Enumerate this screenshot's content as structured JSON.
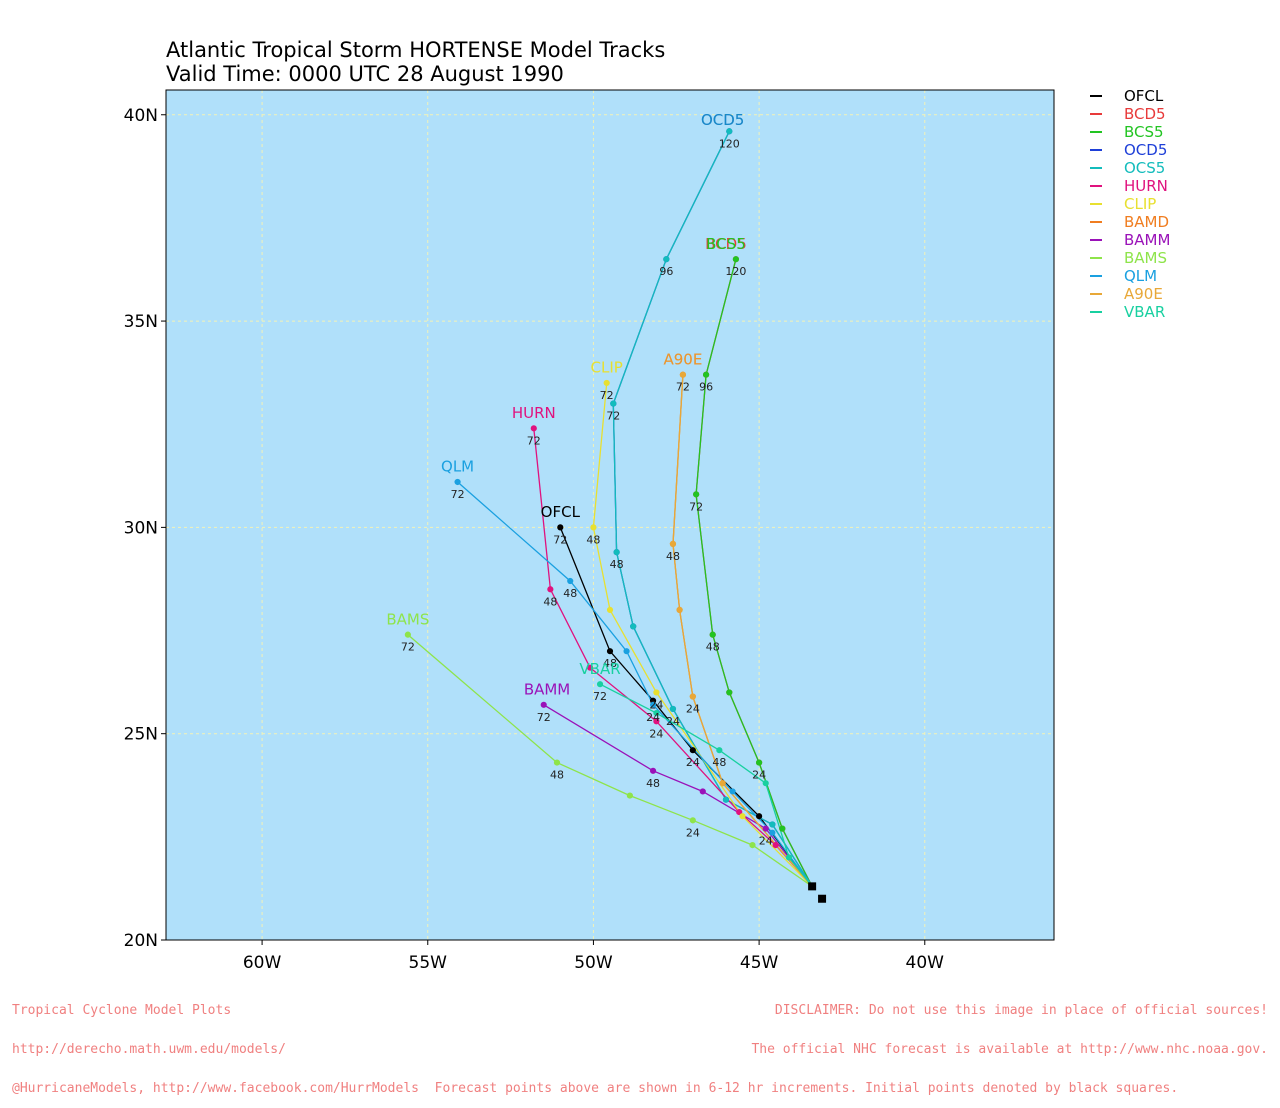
{
  "chart_data": {
    "type": "line",
    "title": "Atlantic Tropical Storm HORTENSE Model Tracks",
    "subtitle": "Valid Time: 0000 UTC 28 August 1990",
    "xlabel": "",
    "ylabel": "",
    "xlim": [
      -62.9,
      -36.1
    ],
    "ylim": [
      20,
      40.6
    ],
    "x_ticks": [
      -60,
      -55,
      -50,
      -45,
      -40
    ],
    "x_tick_labels": [
      "60W",
      "55W",
      "50W",
      "45W",
      "40W"
    ],
    "y_ticks": [
      20,
      25,
      30,
      35,
      40
    ],
    "y_tick_labels": [
      "20N",
      "25N",
      "30N",
      "35N",
      "40N"
    ],
    "grid": true,
    "legend_placement": "right-outside-top",
    "background_color": "#b0e0fa",
    "initial_points": [
      {
        "x": -43.4,
        "y": 21.3
      },
      {
        "x": -43.1,
        "y": 21.0
      }
    ],
    "series": [
      {
        "name": "OFCL",
        "color": "#000000",
        "end_label": "OFCL",
        "end_label_pos": [
          -51.0,
          30.2
        ],
        "points": [
          [
            -43.4,
            21.3
          ],
          [
            -45.0,
            23.0
          ],
          [
            -47.0,
            24.6
          ],
          [
            -48.2,
            25.8
          ],
          [
            -49.5,
            27.0
          ],
          [
            -51.0,
            30.0
          ]
        ],
        "hour_labels": [
          {
            "x": -47.0,
            "y": 24.6,
            "text": "24"
          },
          {
            "x": -49.5,
            "y": 27.0,
            "text": "48"
          },
          {
            "x": -51.0,
            "y": 30.0,
            "text": "72"
          }
        ]
      },
      {
        "name": "BCD5",
        "color": "#e83a3a",
        "end_label": "BCD5",
        "end_label_pos": [
          -46.0,
          36.7
        ],
        "points": [
          [
            -43.4,
            21.3
          ],
          [
            -44.3,
            22.7
          ],
          [
            -45.0,
            24.3
          ],
          [
            -45.9,
            26.0
          ],
          [
            -46.4,
            27.4
          ],
          [
            -46.9,
            30.8
          ],
          [
            -46.6,
            33.7
          ],
          [
            -45.7,
            36.5
          ]
        ],
        "hour_labels": [
          {
            "x": -45.0,
            "y": 24.3,
            "text": "24"
          },
          {
            "x": -46.4,
            "y": 27.4,
            "text": "48"
          },
          {
            "x": -46.9,
            "y": 30.8,
            "text": "72"
          },
          {
            "x": -46.6,
            "y": 33.7,
            "text": "96"
          },
          {
            "x": -45.7,
            "y": 36.5,
            "text": "120"
          }
        ]
      },
      {
        "name": "BCS5",
        "color": "#22c422",
        "end_label": "BCS5",
        "end_label_pos": [
          -46.0,
          36.7
        ],
        "points": [
          [
            -43.4,
            21.3
          ],
          [
            -44.3,
            22.7
          ],
          [
            -45.0,
            24.3
          ],
          [
            -45.9,
            26.0
          ],
          [
            -46.4,
            27.4
          ],
          [
            -46.9,
            30.8
          ],
          [
            -46.6,
            33.7
          ],
          [
            -45.7,
            36.5
          ]
        ],
        "hour_labels": []
      },
      {
        "name": "OCD5",
        "color": "#1e3fd8",
        "end_label": "OCD5",
        "end_label_pos": [
          -46.1,
          39.7
        ],
        "points": [
          [
            -43.4,
            21.3
          ],
          [
            -44.6,
            22.8
          ],
          [
            -46.0,
            23.4
          ],
          [
            -47.6,
            25.6
          ],
          [
            -48.8,
            27.6
          ],
          [
            -49.3,
            29.4
          ],
          [
            -49.4,
            33.0
          ],
          [
            -47.8,
            36.5
          ],
          [
            -45.9,
            39.6
          ]
        ],
        "hour_labels": [
          {
            "x": -47.6,
            "y": 25.6,
            "text": "24"
          },
          {
            "x": -49.3,
            "y": 29.4,
            "text": "48"
          },
          {
            "x": -49.4,
            "y": 33.0,
            "text": "72"
          },
          {
            "x": -47.8,
            "y": 36.5,
            "text": "96"
          },
          {
            "x": -45.9,
            "y": 39.6,
            "text": "120"
          }
        ]
      },
      {
        "name": "OCS5",
        "color": "#13bcbc",
        "end_label": "OCD5",
        "end_label_pos": [
          -46.1,
          39.7
        ],
        "points": [
          [
            -43.4,
            21.3
          ],
          [
            -44.6,
            22.8
          ],
          [
            -46.0,
            23.4
          ],
          [
            -47.6,
            25.6
          ],
          [
            -48.8,
            27.6
          ],
          [
            -49.3,
            29.4
          ],
          [
            -49.4,
            33.0
          ],
          [
            -47.8,
            36.5
          ],
          [
            -45.9,
            39.6
          ]
        ],
        "hour_labels": []
      },
      {
        "name": "HURN",
        "color": "#e0127e",
        "end_label": "HURN",
        "end_label_pos": [
          -51.8,
          32.6
        ],
        "points": [
          [
            -43.4,
            21.3
          ],
          [
            -44.5,
            22.3
          ],
          [
            -45.6,
            23.1
          ],
          [
            -48.1,
            25.3
          ],
          [
            -50.1,
            26.6
          ],
          [
            -51.3,
            28.5
          ],
          [
            -51.8,
            32.4
          ]
        ],
        "hour_labels": [
          {
            "x": -48.1,
            "y": 25.3,
            "text": "24"
          },
          {
            "x": -51.3,
            "y": 28.5,
            "text": "48"
          },
          {
            "x": -51.8,
            "y": 32.4,
            "text": "72"
          }
        ]
      },
      {
        "name": "CLIP",
        "color": "#e8e030",
        "end_label": "CLIP",
        "end_label_pos": [
          -49.6,
          33.7
        ],
        "points": [
          [
            -43.4,
            21.3
          ],
          [
            -45.5,
            23.0
          ],
          [
            -48.1,
            26.0
          ],
          [
            -49.5,
            28.0
          ],
          [
            -50.0,
            30.0
          ],
          [
            -49.6,
            33.5
          ]
        ],
        "hour_labels": [
          {
            "x": -48.1,
            "y": 26.0,
            "text": "24"
          },
          {
            "x": -50.0,
            "y": 30.0,
            "text": "48"
          },
          {
            "x": -49.6,
            "y": 33.5,
            "text": "72"
          }
        ]
      },
      {
        "name": "BAMD",
        "color": "#f07d20",
        "end_label": "A90E",
        "end_label_pos": [
          -47.3,
          33.9
        ],
        "points": [
          [
            -43.4,
            21.3
          ],
          [
            -46.1,
            23.8
          ],
          [
            -47.0,
            25.9
          ],
          [
            -47.4,
            28.0
          ],
          [
            -47.6,
            29.6
          ],
          [
            -47.3,
            33.7
          ]
        ],
        "hour_labels": [
          {
            "x": -47.0,
            "y": 25.9,
            "text": "24"
          },
          {
            "x": -47.6,
            "y": 29.6,
            "text": "48"
          },
          {
            "x": -47.3,
            "y": 33.7,
            "text": "72"
          }
        ]
      },
      {
        "name": "BAMM",
        "color": "#9a12b8",
        "end_label": "BAMM",
        "end_label_pos": [
          -51.4,
          25.9
        ],
        "points": [
          [
            -43.4,
            21.3
          ],
          [
            -44.8,
            22.7
          ],
          [
            -46.7,
            23.6
          ],
          [
            -48.2,
            24.1
          ],
          [
            -51.5,
            25.7
          ]
        ],
        "hour_labels": [
          {
            "x": -44.8,
            "y": 22.7,
            "text": "24"
          },
          {
            "x": -48.2,
            "y": 24.1,
            "text": "48"
          },
          {
            "x": -51.5,
            "y": 25.7,
            "text": "72"
          }
        ]
      },
      {
        "name": "BAMS",
        "color": "#8ee44a",
        "end_label": "BAMS",
        "end_label_pos": [
          -55.6,
          27.6
        ],
        "points": [
          [
            -43.4,
            21.3
          ],
          [
            -45.2,
            22.3
          ],
          [
            -47.0,
            22.9
          ],
          [
            -48.9,
            23.5
          ],
          [
            -51.1,
            24.3
          ],
          [
            -55.6,
            27.4
          ]
        ],
        "hour_labels": [
          {
            "x": -47.0,
            "y": 22.9,
            "text": "24"
          },
          {
            "x": -51.1,
            "y": 24.3,
            "text": "48"
          },
          {
            "x": -55.6,
            "y": 27.4,
            "text": "72"
          }
        ]
      },
      {
        "name": "QLM",
        "color": "#1aa0e0",
        "end_label": "QLM",
        "end_label_pos": [
          -54.1,
          31.3
        ],
        "points": [
          [
            -43.4,
            21.3
          ],
          [
            -44.6,
            22.6
          ],
          [
            -45.8,
            23.6
          ],
          [
            -48.2,
            25.7
          ],
          [
            -49.0,
            27.0
          ],
          [
            -50.7,
            28.7
          ],
          [
            -54.1,
            31.1
          ]
        ],
        "hour_labels": [
          {
            "x": -48.2,
            "y": 25.7,
            "text": "24"
          },
          {
            "x": -50.7,
            "y": 28.7,
            "text": "48"
          },
          {
            "x": -54.1,
            "y": 31.1,
            "text": "72"
          }
        ]
      },
      {
        "name": "A90E",
        "color": "#e8a838",
        "end_label": "A90E",
        "end_label_pos": [
          -47.3,
          33.9
        ],
        "points": [
          [
            -43.4,
            21.3
          ],
          [
            -46.1,
            23.8
          ],
          [
            -47.0,
            25.9
          ],
          [
            -47.4,
            28.0
          ],
          [
            -47.6,
            29.6
          ],
          [
            -47.3,
            33.7
          ]
        ],
        "hour_labels": []
      },
      {
        "name": "VBAR",
        "color": "#18d0a0",
        "end_label": "VBAR",
        "end_label_pos": [
          -49.8,
          26.4
        ],
        "points": [
          [
            -43.4,
            21.3
          ],
          [
            -44.1,
            22.0
          ],
          [
            -44.8,
            23.8
          ],
          [
            -46.2,
            24.6
          ],
          [
            -48.1,
            25.5
          ],
          [
            -49.8,
            26.2
          ]
        ],
        "hour_labels": [
          {
            "x": -46.2,
            "y": 24.6,
            "text": "48"
          },
          {
            "x": -49.8,
            "y": 26.2,
            "text": "72"
          }
        ]
      }
    ]
  },
  "footer": {
    "left": [
      "Tropical Cyclone Model Plots",
      "http://derecho.math.uwm.edu/models/",
      "@HurricaneModels, http://www.facebook.com/HurrModels  Forecast points above are shown in 6-12 hr increments. Initial points denoted by black squares."
    ],
    "right": [
      "DISCLAIMER: Do not use this image in place of official sources!",
      "The official NHC forecast is available at http://www.nhc.noaa.gov."
    ]
  }
}
